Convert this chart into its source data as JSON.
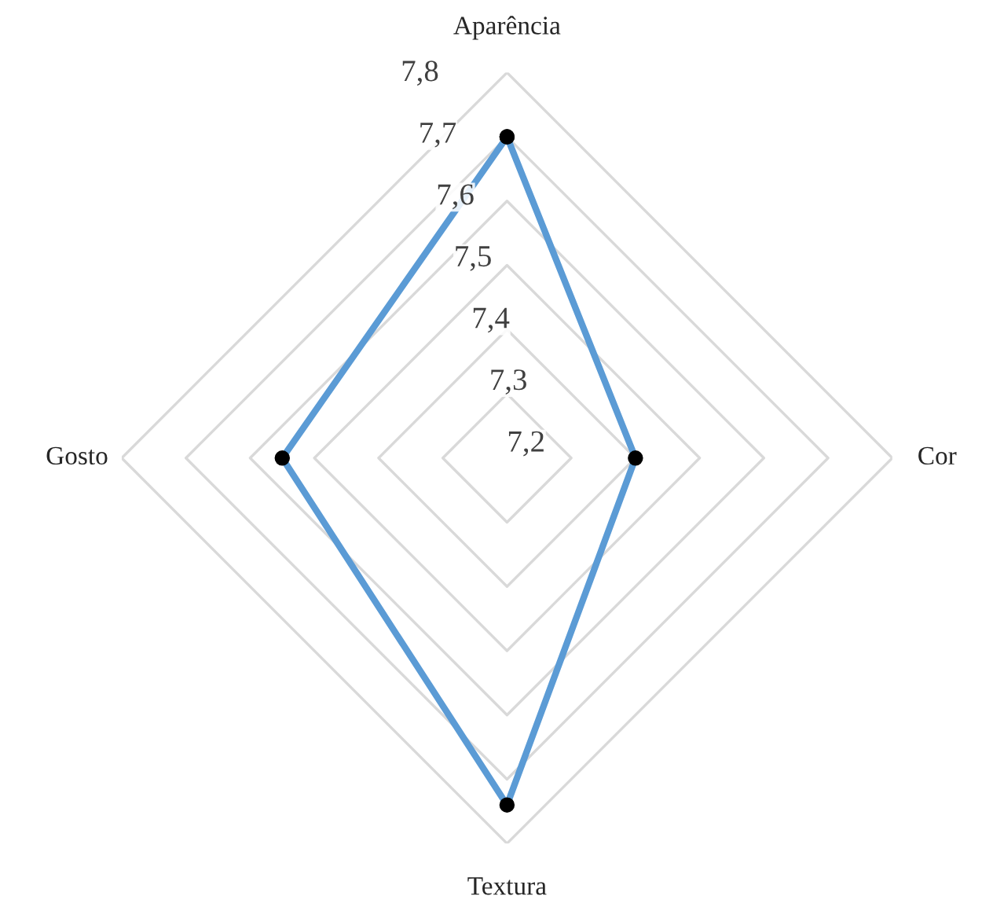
{
  "chart_data": {
    "type": "radar",
    "categories": [
      "Aparência",
      "Cor",
      "Textura",
      "Gosto"
    ],
    "series": [
      {
        "color": "#5b9bd5",
        "values": [
          7.7,
          7.4,
          7.74,
          7.55
        ]
      }
    ],
    "ylim": [
      7.2,
      7.8
    ],
    "yticks": [
      {
        "value": 7.2,
        "label": "7,2"
      },
      {
        "value": 7.3,
        "label": "7,3"
      },
      {
        "value": 7.4,
        "label": "7,4"
      },
      {
        "value": 7.5,
        "label": "7,5"
      },
      {
        "value": 7.6,
        "label": "7,6"
      },
      {
        "value": 7.7,
        "label": "7,7"
      },
      {
        "value": 7.8,
        "label": "7,8"
      }
    ],
    "grid": true,
    "marker": "circle",
    "line_style": "solid"
  }
}
